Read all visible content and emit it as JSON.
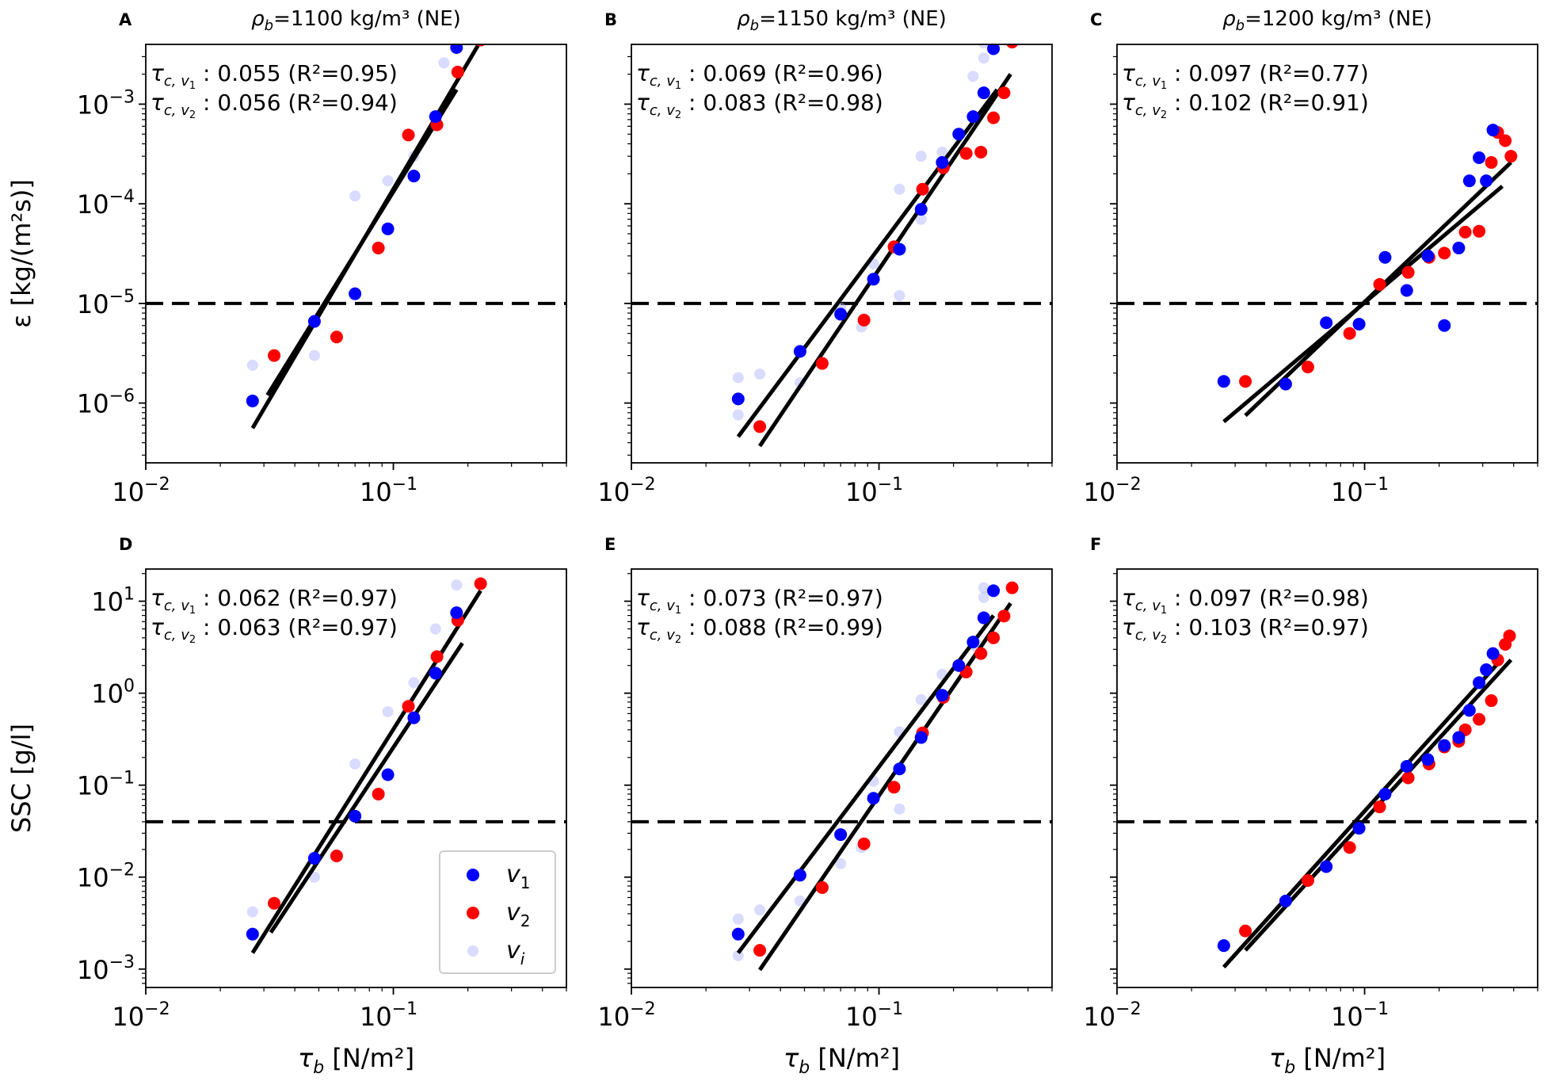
{
  "chart_data": {
    "type": "scatter",
    "xlabel_main": "τ",
    "xlabel_sub": "b",
    "xlabel_unit": " [N/m²]",
    "x_scale": "log",
    "xlim": [
      0.01,
      0.5
    ],
    "x_tick_labels": [
      {
        "value": 0.01,
        "base": "10",
        "exp": "−2"
      },
      {
        "value": 0.1,
        "base": "10",
        "exp": "−1"
      }
    ],
    "colors": {
      "v1": "#0000ff",
      "v2": "#ff0000",
      "vi": "#aab0ff"
    },
    "legend": {
      "position": "bottom-right of panel D",
      "entries": [
        {
          "series": "v1",
          "label": "v",
          "sub": "1"
        },
        {
          "series": "v2",
          "label": "v",
          "sub": "2"
        },
        {
          "series": "vi",
          "label": "v",
          "sub": "i"
        }
      ]
    },
    "column_titles": [
      {
        "pre": "ρ",
        "sub": "b",
        "post": "=1100 kg/m³ (NE)"
      },
      {
        "pre": "ρ",
        "sub": "b",
        "post": "=1150 kg/m³ (NE)"
      },
      {
        "pre": "ρ",
        "sub": "b",
        "post": "=1200 kg/m³ (NE)"
      }
    ],
    "rows": [
      {
        "ylabel": "ε [kg/(m²s)]",
        "ylim_exp": [
          -6.6,
          -2.4
        ],
        "y_ticks": [
          {
            "exp": -6,
            "label_base": "10",
            "label_exp": "−6"
          },
          {
            "exp": -5,
            "label_base": "10",
            "label_exp": "−5"
          },
          {
            "exp": -4,
            "label_base": "10",
            "label_exp": "−4"
          },
          {
            "exp": -3,
            "label_base": "10",
            "label_exp": "−3"
          }
        ],
        "threshold": 1e-05
      },
      {
        "ylabel": "SSC [g/l]",
        "ylim_exp": [
          -3.2,
          1.35
        ],
        "y_ticks": [
          {
            "exp": -3,
            "label_base": "10",
            "label_exp": "−3"
          },
          {
            "exp": -2,
            "label_base": "10",
            "label_exp": "−2"
          },
          {
            "exp": -1,
            "label_base": "10",
            "label_exp": "−1"
          },
          {
            "exp": 0,
            "label_base": "10",
            "label_exp": "0"
          },
          {
            "exp": 1,
            "label_base": "10",
            "label_exp": "1"
          }
        ],
        "threshold": 0.04
      }
    ],
    "panels": [
      {
        "letter": "A",
        "row": 0,
        "col": 0,
        "annotations": [
          {
            "tau": "τ",
            "sub": "c, v",
            "subsub": "1",
            "text": " : 0.055 (R²=0.95)"
          },
          {
            "tau": "τ",
            "sub": "c, v",
            "subsub": "2",
            "text": " : 0.056 (R²=0.94)"
          }
        ],
        "v1": [
          [
            0.027,
            1.05e-06
          ],
          [
            0.048,
            6.6e-06
          ],
          [
            0.07,
            1.25e-05
          ],
          [
            0.095,
            5.6e-05
          ],
          [
            0.121,
            0.00019
          ],
          [
            0.148,
            0.00075
          ],
          [
            0.18,
            0.0037
          ]
        ],
        "v2": [
          [
            0.033,
            3e-06
          ],
          [
            0.059,
            4.6e-06
          ],
          [
            0.087,
            3.6e-05
          ],
          [
            0.115,
            0.00049
          ],
          [
            0.15,
            0.00062
          ],
          [
            0.182,
            0.0021
          ],
          [
            0.225,
            0.0044
          ]
        ],
        "vi": [
          [
            0.027,
            2.4e-06
          ],
          [
            0.048,
            3e-06
          ],
          [
            0.07,
            0.00012
          ],
          [
            0.095,
            0.00017
          ],
          [
            0.121,
            0.0003
          ],
          [
            0.16,
            0.0026
          ]
        ],
        "fits": [
          {
            "series": "v1",
            "x": [
              0.027,
              0.225
            ],
            "y": [
              5.6e-07,
              0.0043
            ]
          },
          {
            "series": "v2",
            "x": [
              0.031,
              0.18
            ],
            "y": [
              1.2e-06,
              0.0014
            ]
          }
        ]
      },
      {
        "letter": "B",
        "row": 0,
        "col": 1,
        "annotations": [
          {
            "tau": "τ",
            "sub": "c, v",
            "subsub": "1",
            "text": " : 0.069 (R²=0.96)"
          },
          {
            "tau": "τ",
            "sub": "c, v",
            "subsub": "2",
            "text": " : 0.083 (R²=0.98)"
          }
        ],
        "v1": [
          [
            0.027,
            1.1e-06
          ],
          [
            0.048,
            3.3e-06
          ],
          [
            0.07,
            7.8e-06
          ],
          [
            0.095,
            1.75e-05
          ],
          [
            0.121,
            3.5e-05
          ],
          [
            0.148,
            8.8e-05
          ],
          [
            0.18,
            0.00026
          ],
          [
            0.21,
            0.0005
          ],
          [
            0.24,
            0.00075
          ],
          [
            0.265,
            0.0013
          ],
          [
            0.29,
            0.0036
          ]
        ],
        "v2": [
          [
            0.033,
            5.8e-07
          ],
          [
            0.059,
            2.5e-06
          ],
          [
            0.087,
            6.8e-06
          ],
          [
            0.115,
            3.7e-05
          ],
          [
            0.15,
            0.00014
          ],
          [
            0.182,
            0.00023
          ],
          [
            0.225,
            0.00032
          ],
          [
            0.258,
            0.00033
          ],
          [
            0.29,
            0.00073
          ],
          [
            0.32,
            0.0013
          ],
          [
            0.345,
            0.0042
          ]
        ],
        "vi": [
          [
            0.027,
            1.8e-06
          ],
          [
            0.027,
            7.6e-07
          ],
          [
            0.033,
            1.95e-06
          ],
          [
            0.048,
            1.6e-06
          ],
          [
            0.07,
            9e-06
          ],
          [
            0.085,
            5.8e-06
          ],
          [
            0.095,
            2.5e-05
          ],
          [
            0.121,
            0.00014
          ],
          [
            0.121,
            1.2e-05
          ],
          [
            0.148,
            0.0003
          ],
          [
            0.148,
            7e-05
          ],
          [
            0.18,
            0.00033
          ],
          [
            0.24,
            0.0019
          ],
          [
            0.265,
            0.0041
          ],
          [
            0.265,
            0.0029
          ]
        ],
        "fits": [
          {
            "series": "v1",
            "x": [
              0.027,
              0.3
            ],
            "y": [
              4.6e-07,
              0.0014
            ]
          },
          {
            "series": "v2",
            "x": [
              0.033,
              0.34
            ],
            "y": [
              3.7e-07,
              0.002
            ]
          }
        ]
      },
      {
        "letter": "C",
        "row": 0,
        "col": 2,
        "annotations": [
          {
            "tau": "τ",
            "sub": "c, v",
            "subsub": "1",
            "text": " : 0.097 (R²=0.77)"
          },
          {
            "tau": "τ",
            "sub": "c, v",
            "subsub": "2",
            "text": " : 0.102 (R²=0.91)"
          }
        ],
        "v1": [
          [
            0.027,
            1.65e-06
          ],
          [
            0.048,
            1.55e-06
          ],
          [
            0.07,
            6.4e-06
          ],
          [
            0.095,
            6.2e-06
          ],
          [
            0.121,
            2.9e-05
          ],
          [
            0.148,
            1.35e-05
          ],
          [
            0.18,
            3e-05
          ],
          [
            0.21,
            6e-06
          ],
          [
            0.24,
            3.6e-05
          ],
          [
            0.265,
            0.00017
          ],
          [
            0.29,
            0.00029
          ],
          [
            0.31,
            0.00017
          ],
          [
            0.33,
            0.00055
          ]
        ],
        "v2": [
          [
            0.033,
            1.65e-06
          ],
          [
            0.059,
            2.3e-06
          ],
          [
            0.087,
            5e-06
          ],
          [
            0.115,
            1.55e-05
          ],
          [
            0.15,
            2.05e-05
          ],
          [
            0.182,
            2.9e-05
          ],
          [
            0.21,
            3.2e-05
          ],
          [
            0.255,
            5.2e-05
          ],
          [
            0.29,
            5.3e-05
          ],
          [
            0.325,
            0.00026
          ],
          [
            0.345,
            0.00052
          ],
          [
            0.37,
            0.00043
          ],
          [
            0.39,
            0.0003
          ]
        ],
        "vi": [],
        "fits": [
          {
            "series": "v1",
            "x": [
              0.027,
              0.36
            ],
            "y": [
              6.5e-07,
              0.00015
            ]
          },
          {
            "series": "v2",
            "x": [
              0.033,
              0.39
            ],
            "y": [
              7.5e-07,
              0.00026
            ]
          }
        ]
      },
      {
        "letter": "D",
        "row": 1,
        "col": 0,
        "annotations": [
          {
            "tau": "τ",
            "sub": "c, v",
            "subsub": "1",
            "text": " : 0.062 (R²=0.97)"
          },
          {
            "tau": "τ",
            "sub": "c, v",
            "subsub": "2",
            "text": " : 0.063 (R²=0.97)"
          }
        ],
        "v1": [
          [
            0.027,
            0.0024
          ],
          [
            0.048,
            0.016
          ],
          [
            0.07,
            0.046
          ],
          [
            0.095,
            0.13
          ],
          [
            0.121,
            0.54
          ],
          [
            0.148,
            1.65
          ],
          [
            0.18,
            7.5
          ]
        ],
        "v2": [
          [
            0.033,
            0.0052
          ],
          [
            0.059,
            0.017
          ],
          [
            0.087,
            0.08
          ],
          [
            0.115,
            0.72
          ],
          [
            0.15,
            2.5
          ],
          [
            0.182,
            6.2
          ],
          [
            0.225,
            15.5
          ]
        ],
        "vi": [
          [
            0.027,
            0.0042
          ],
          [
            0.048,
            0.01
          ],
          [
            0.07,
            0.17
          ],
          [
            0.095,
            0.63
          ],
          [
            0.121,
            1.3
          ],
          [
            0.148,
            5
          ],
          [
            0.18,
            15
          ]
        ],
        "fits": [
          {
            "series": "v1",
            "x": [
              0.027,
              0.225
            ],
            "y": [
              0.0015,
              13
            ]
          },
          {
            "series": "v2",
            "x": [
              0.032,
              0.19
            ],
            "y": [
              0.0025,
              3.5
            ]
          }
        ]
      },
      {
        "letter": "E",
        "row": 1,
        "col": 1,
        "annotations": [
          {
            "tau": "τ",
            "sub": "c, v",
            "subsub": "1",
            "text": " : 0.073 (R²=0.97)"
          },
          {
            "tau": "τ",
            "sub": "c, v",
            "subsub": "2",
            "text": " : 0.088 (R²=0.99)"
          }
        ],
        "v1": [
          [
            0.027,
            0.0024
          ],
          [
            0.048,
            0.0105
          ],
          [
            0.07,
            0.029
          ],
          [
            0.095,
            0.072
          ],
          [
            0.121,
            0.15
          ],
          [
            0.148,
            0.33
          ],
          [
            0.18,
            0.95
          ],
          [
            0.21,
            2
          ],
          [
            0.24,
            3.6
          ],
          [
            0.265,
            6.6
          ],
          [
            0.29,
            13
          ]
        ],
        "v2": [
          [
            0.033,
            0.0016
          ],
          [
            0.059,
            0.0077
          ],
          [
            0.087,
            0.023
          ],
          [
            0.115,
            0.095
          ],
          [
            0.15,
            0.37
          ],
          [
            0.182,
            0.9
          ],
          [
            0.225,
            1.7
          ],
          [
            0.258,
            2.7
          ],
          [
            0.29,
            4
          ],
          [
            0.32,
            6.9
          ],
          [
            0.345,
            14
          ]
        ],
        "vi": [
          [
            0.027,
            0.0035
          ],
          [
            0.027,
            0.0014
          ],
          [
            0.033,
            0.0044
          ],
          [
            0.048,
            0.0055
          ],
          [
            0.07,
            0.014
          ],
          [
            0.085,
            0.021
          ],
          [
            0.095,
            0.11
          ],
          [
            0.121,
            0.38
          ],
          [
            0.121,
            0.055
          ],
          [
            0.148,
            0.85
          ],
          [
            0.18,
            1.6
          ],
          [
            0.24,
            3.3
          ],
          [
            0.265,
            14
          ],
          [
            0.265,
            11
          ]
        ],
        "fits": [
          {
            "series": "v1",
            "x": [
              0.027,
              0.29
            ],
            "y": [
              0.0015,
              7
            ]
          },
          {
            "series": "v2",
            "x": [
              0.033,
              0.34
            ],
            "y": [
              0.00098,
              9.5
            ]
          }
        ]
      },
      {
        "letter": "F",
        "row": 1,
        "col": 2,
        "annotations": [
          {
            "tau": "τ",
            "sub": "c, v",
            "subsub": "1",
            "text": " : 0.097 (R²=0.98)"
          },
          {
            "tau": "τ",
            "sub": "c, v",
            "subsub": "2",
            "text": " : 0.103 (R²=0.97)"
          }
        ],
        "v1": [
          [
            0.027,
            0.0018
          ],
          [
            0.048,
            0.0055
          ],
          [
            0.07,
            0.013
          ],
          [
            0.095,
            0.034
          ],
          [
            0.121,
            0.08
          ],
          [
            0.148,
            0.16
          ],
          [
            0.18,
            0.19
          ],
          [
            0.21,
            0.27
          ],
          [
            0.24,
            0.33
          ],
          [
            0.265,
            0.65
          ],
          [
            0.29,
            1.3
          ],
          [
            0.31,
            1.8
          ],
          [
            0.33,
            2.7
          ]
        ],
        "v2": [
          [
            0.033,
            0.0026
          ],
          [
            0.059,
            0.0092
          ],
          [
            0.087,
            0.021
          ],
          [
            0.115,
            0.058
          ],
          [
            0.15,
            0.12
          ],
          [
            0.182,
            0.17
          ],
          [
            0.21,
            0.26
          ],
          [
            0.24,
            0.3
          ],
          [
            0.255,
            0.4
          ],
          [
            0.29,
            0.52
          ],
          [
            0.325,
            0.83
          ],
          [
            0.345,
            2.3
          ],
          [
            0.37,
            3.4
          ],
          [
            0.385,
            4.2
          ]
        ],
        "vi": [],
        "fits": [
          {
            "series": "v1",
            "x": [
              0.027,
              0.345
            ],
            "y": [
              0.00105,
              2.1
            ]
          },
          {
            "series": "v2",
            "x": [
              0.033,
              0.39
            ],
            "y": [
              0.0016,
              2.3
            ]
          }
        ]
      }
    ]
  }
}
